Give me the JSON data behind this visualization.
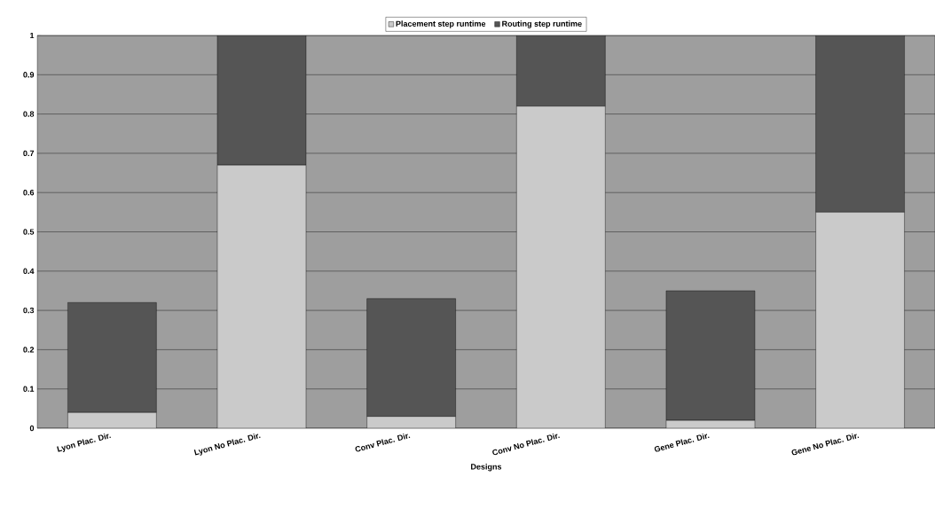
{
  "chart_data": {
    "type": "bar",
    "stacked": true,
    "xlabel": "Designs",
    "categories": [
      "Lyon Plac. Dir.",
      "Lyon No Plac. Dir.",
      "Conv Plac. Dir.",
      "Conv No Plac. Dir.",
      "Gene Plac. Dir.",
      "Gene No Plac. Dir."
    ],
    "series": [
      {
        "name": "Placement step runtime",
        "color": "#cacaca",
        "values": [
          0.04,
          0.67,
          0.03,
          0.82,
          0.02,
          0.55
        ]
      },
      {
        "name": "Routing step runtime",
        "color": "#555555",
        "values": [
          0.28,
          0.33,
          0.3,
          0.18,
          0.33,
          0.45
        ]
      }
    ],
    "ylim": [
      0,
      1
    ],
    "yticks": [
      0,
      0.1,
      0.2,
      0.3,
      0.4,
      0.5,
      0.6,
      0.7,
      0.8,
      0.9,
      1
    ],
    "grid": "y",
    "legend": "top"
  }
}
